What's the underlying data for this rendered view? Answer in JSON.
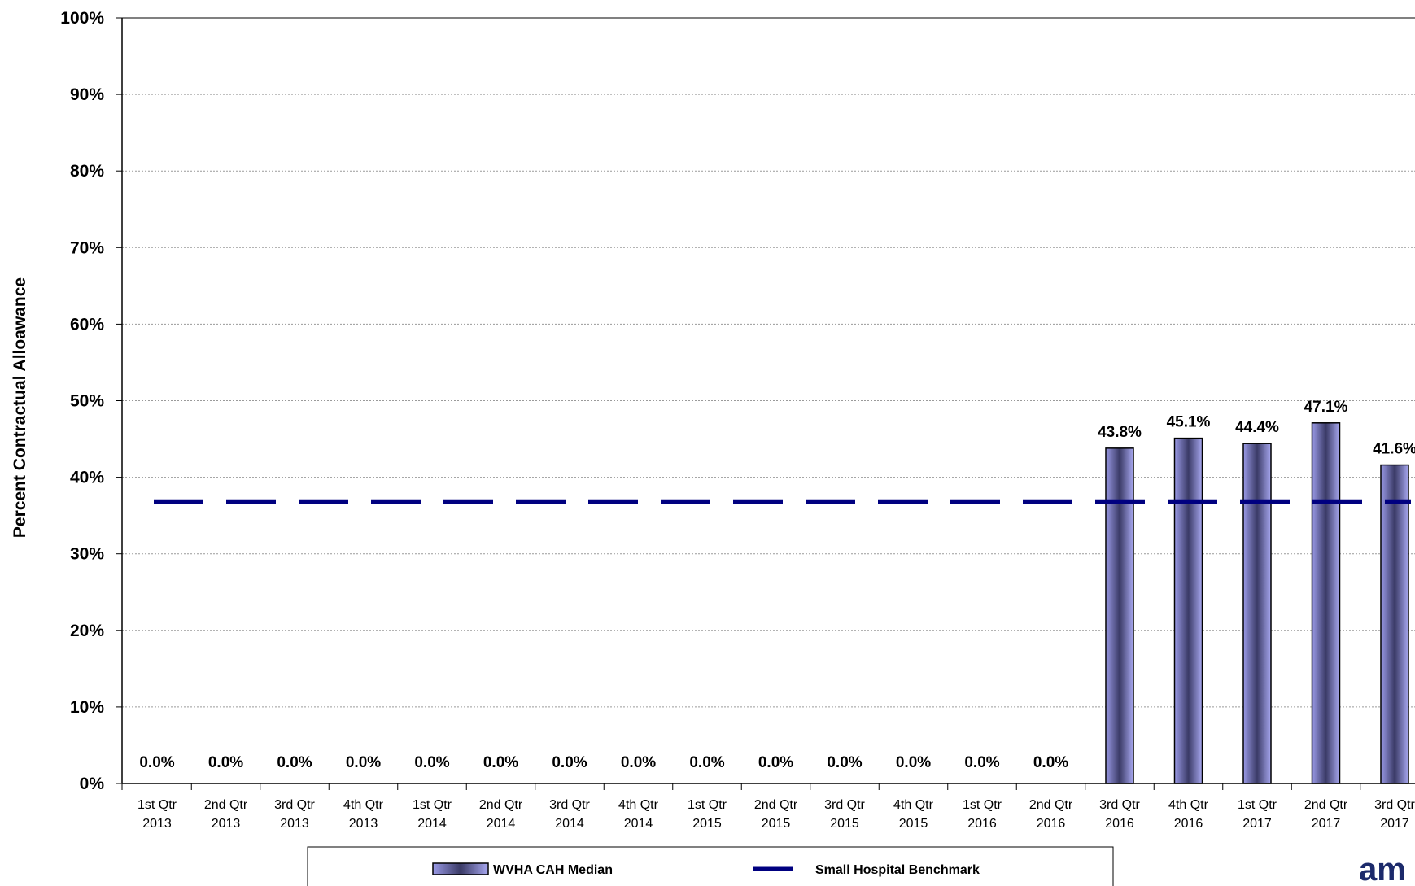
{
  "chart_data": {
    "type": "bar",
    "ylabel": "Percent Contractual Alloawance",
    "xlabel": "",
    "ylim": [
      0,
      100
    ],
    "yticks": [
      "0%",
      "10%",
      "20%",
      "30%",
      "40%",
      "50%",
      "60%",
      "70%",
      "80%",
      "90%",
      "100%"
    ],
    "grid": true,
    "categories": [
      [
        "1st Qtr",
        "2013"
      ],
      [
        "2nd Qtr",
        "2013"
      ],
      [
        "3rd Qtr",
        "2013"
      ],
      [
        "4th Qtr",
        "2013"
      ],
      [
        "1st Qtr",
        "2014"
      ],
      [
        "2nd Qtr",
        "2014"
      ],
      [
        "3rd Qtr",
        "2014"
      ],
      [
        "4th Qtr",
        "2014"
      ],
      [
        "1st Qtr",
        "2015"
      ],
      [
        "2nd Qtr",
        "2015"
      ],
      [
        "3rd Qtr",
        "2015"
      ],
      [
        "4th Qtr",
        "2015"
      ],
      [
        "1st Qtr",
        "2016"
      ],
      [
        "2nd Qtr",
        "2016"
      ],
      [
        "3rd Qtr",
        "2016"
      ],
      [
        "4th Qtr",
        "2016"
      ],
      [
        "1st Qtr",
        "2017"
      ],
      [
        "2nd Qtr",
        "2017"
      ],
      [
        "3rd Qtr",
        "2017"
      ]
    ],
    "series": [
      {
        "name": "WVHA CAH Median",
        "type": "bar",
        "values": [
          0,
          0,
          0,
          0,
          0,
          0,
          0,
          0,
          0,
          0,
          0,
          0,
          0,
          0,
          43.8,
          45.1,
          44.4,
          47.1,
          41.6
        ],
        "labels": [
          "0.0%",
          "0.0%",
          "0.0%",
          "0.0%",
          "0.0%",
          "0.0%",
          "0.0%",
          "0.0%",
          "0.0%",
          "0.0%",
          "0.0%",
          "0.0%",
          "0.0%",
          "0.0%",
          "43.8%",
          "45.1%",
          "44.4%",
          "47.1%",
          "41.6%"
        ],
        "color": "#8a8ad8"
      },
      {
        "name": "Small Hospital Benchmark",
        "type": "line",
        "style": "dashed",
        "value": 36.8,
        "color": "#000080"
      }
    ],
    "legend": "bottom"
  },
  "logo": {
    "text": "am"
  }
}
